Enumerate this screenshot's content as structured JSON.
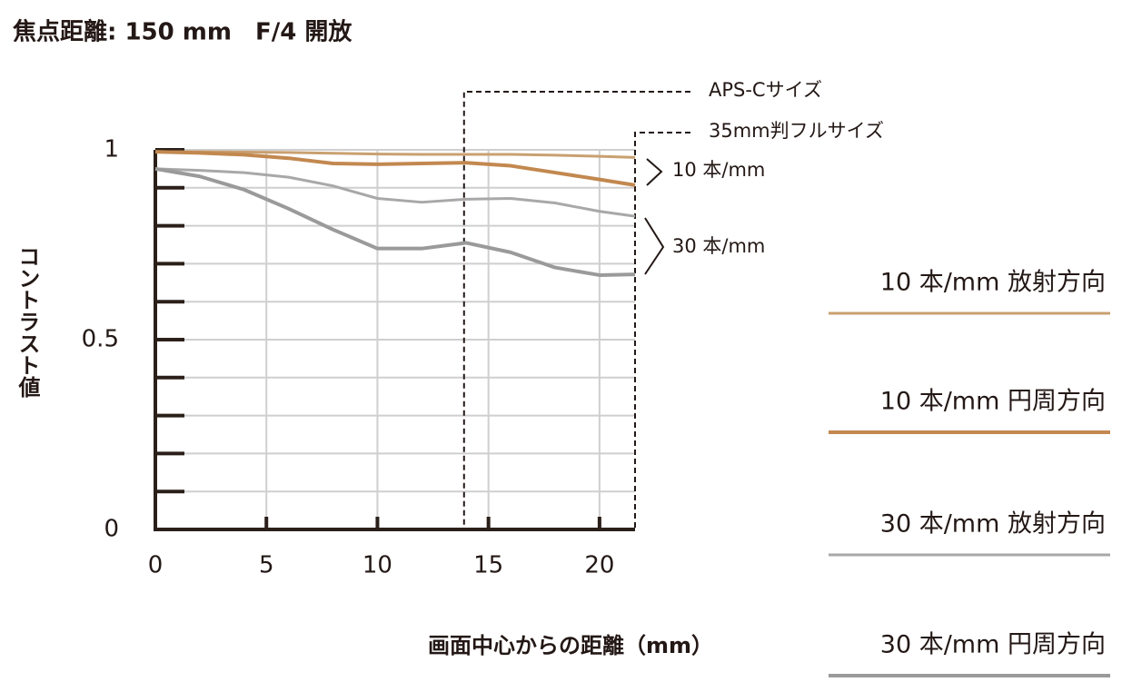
{
  "chart_data": {
    "type": "line",
    "title": "焦点距離: 150 mm　F/4 開放",
    "x_label": "画面中心からの距離（mm）",
    "y_label": "コントラスト値",
    "x": [
      0,
      2,
      4,
      6,
      8,
      10,
      12,
      14,
      16,
      18,
      20,
      21.6
    ],
    "series": [
      {
        "name": "10 本/mm 放射方向",
        "color": "#c9a070",
        "width": 3,
        "values": [
          0.995,
          0.995,
          0.994,
          0.993,
          0.991,
          0.989,
          0.988,
          0.988,
          0.988,
          0.986,
          0.983,
          0.98
        ]
      },
      {
        "name": "10 本/mm 円周方向",
        "color": "#c2884f",
        "width": 4,
        "values": [
          0.995,
          0.992,
          0.987,
          0.978,
          0.964,
          0.962,
          0.964,
          0.966,
          0.958,
          0.94,
          0.922,
          0.907
        ]
      },
      {
        "name": "30 本/mm 放射方向",
        "color": "#a8a8a8",
        "width": 3,
        "values": [
          0.95,
          0.946,
          0.94,
          0.928,
          0.905,
          0.872,
          0.862,
          0.87,
          0.872,
          0.86,
          0.838,
          0.825
        ]
      },
      {
        "name": "30 本/mm 円周方向",
        "color": "#9a9a9a",
        "width": 4,
        "values": [
          0.95,
          0.93,
          0.895,
          0.845,
          0.79,
          0.74,
          0.74,
          0.755,
          0.73,
          0.69,
          0.67,
          0.672
        ]
      }
    ],
    "xlim": [
      0,
      21.6
    ],
    "ylim": [
      0,
      1
    ],
    "xticks": [
      0,
      5,
      10,
      15,
      20
    ],
    "yticks": [
      0,
      0.5,
      1
    ],
    "yminorticks": [
      0.1,
      0.2,
      0.3,
      0.4,
      0.6,
      0.7,
      0.8,
      0.9
    ],
    "grid": true,
    "markers": [
      {
        "text": "APS-Cサイズ",
        "x": 13.9
      },
      {
        "text": "35mm判フルサイズ",
        "x": 21.6
      }
    ],
    "group_labels": [
      "10 本/mm",
      "30 本/mm"
    ]
  }
}
